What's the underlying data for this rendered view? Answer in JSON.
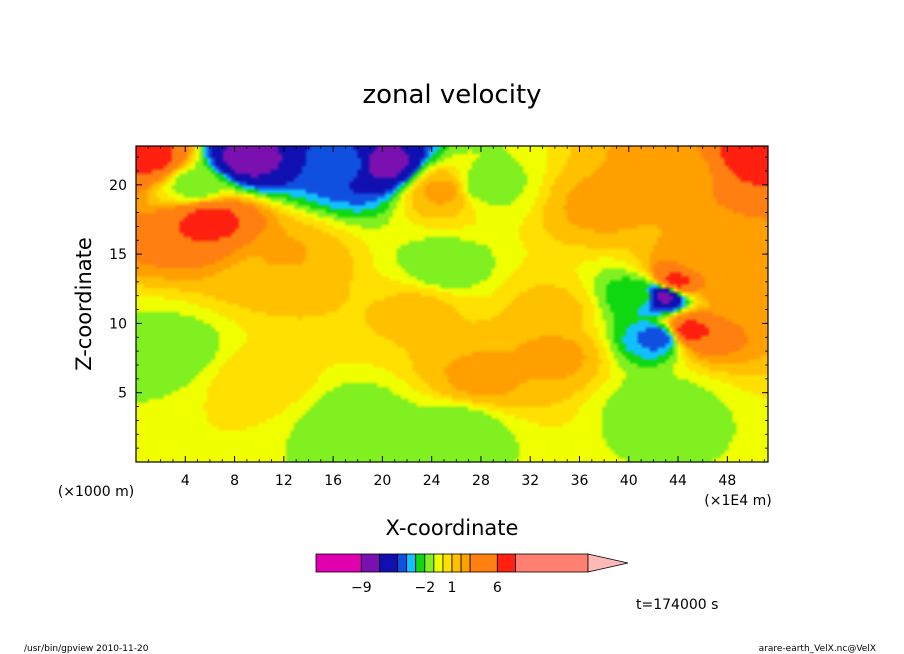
{
  "chart_data": {
    "type": "heatmap",
    "title": "zonal velocity",
    "xlabel": "X-coordinate",
    "ylabel": "Z-coordinate",
    "x_unit": "(×1E4 m)",
    "y_unit": "(×1000 m)",
    "xlim": [
      0,
      51.3
    ],
    "ylim": [
      0,
      22.8
    ],
    "x_ticks": [
      4,
      8,
      12,
      16,
      20,
      24,
      28,
      32,
      36,
      40,
      44,
      48
    ],
    "y_ticks": [
      5,
      10,
      15,
      20
    ],
    "time_label": "t=174000 s",
    "colorbar": {
      "levels": [
        -14,
        -9,
        -7,
        -5,
        -4,
        -3,
        -2,
        -1,
        0,
        1,
        2,
        3,
        6,
        8,
        16
      ],
      "colors": [
        "#e000b0",
        "#7a10b0",
        "#1010b0",
        "#1050e0",
        "#10c0ff",
        "#10d810",
        "#80f020",
        "#f0ff00",
        "#ffe000",
        "#ffc000",
        "#ffa000",
        "#ff8010",
        "#ff2010",
        "#ff8070",
        "#ffb8b8"
      ],
      "tick_labels": [
        {
          "value": -9,
          "label": "−9"
        },
        {
          "value": -2,
          "label": "−2"
        },
        {
          "value": 1,
          "label": "1"
        },
        {
          "value": 6,
          "label": "6"
        }
      ]
    },
    "field_features": [
      {
        "x": 23,
        "z": 11,
        "value": 1.2
      },
      {
        "x": 12,
        "z": 13.5,
        "value": 1.0
      },
      {
        "x": 34,
        "z": 11,
        "value": 1.2
      },
      {
        "x": 10,
        "z": 6,
        "value": 0.5
      },
      {
        "x": 28,
        "z": 6,
        "value": 2.2
      },
      {
        "x": 34,
        "z": 7.8,
        "value": 2.2
      },
      {
        "x": 12,
        "z": 14.5,
        "value": 2.2
      },
      {
        "x": 18,
        "z": 3,
        "value": -1.6
      },
      {
        "x": 3,
        "z": 8,
        "value": -1.5
      },
      {
        "x": 5,
        "z": 20,
        "value": -1.5
      },
      {
        "x": 9,
        "z": 21.8,
        "value": -7.5
      },
      {
        "x": 17,
        "z": 21.5,
        "value": -4.5
      },
      {
        "x": 20,
        "z": 21.5,
        "value": -7.5
      },
      {
        "x": 25,
        "z": 19.6,
        "value": 2.2
      },
      {
        "x": 6,
        "z": 17.5,
        "value": 6.5
      },
      {
        "x": 1,
        "z": 22,
        "value": 6.5
      },
      {
        "x": 50,
        "z": 22,
        "value": 6.5
      },
      {
        "x": 44,
        "z": 21,
        "value": 2.2
      },
      {
        "x": 38,
        "z": 18.5,
        "value": 2.2
      },
      {
        "x": 42.8,
        "z": 12,
        "value": -7.5
      },
      {
        "x": 43.8,
        "z": 13,
        "value": 6.5
      },
      {
        "x": 42.5,
        "z": 9,
        "value": -4.5
      },
      {
        "x": 44.8,
        "z": 9.5,
        "value": 6.5
      },
      {
        "x": 46,
        "z": 14.5,
        "value": 2.2
      },
      {
        "x": 42.5,
        "z": 4,
        "value": -1.5
      },
      {
        "x": 41,
        "z": 12,
        "value": -2.5
      },
      {
        "x": 25,
        "z": 14,
        "value": -1.5
      },
      {
        "x": 26,
        "z": 2.5,
        "value": -1.6
      },
      {
        "x": 48,
        "z": 12,
        "value": 2.2
      },
      {
        "x": 28,
        "z": 20,
        "value": -1.5
      }
    ]
  },
  "footer": {
    "left": "/usr/bin/gpview   2010-11-20",
    "right": "arare-earth_VelX.nc@VelX"
  }
}
